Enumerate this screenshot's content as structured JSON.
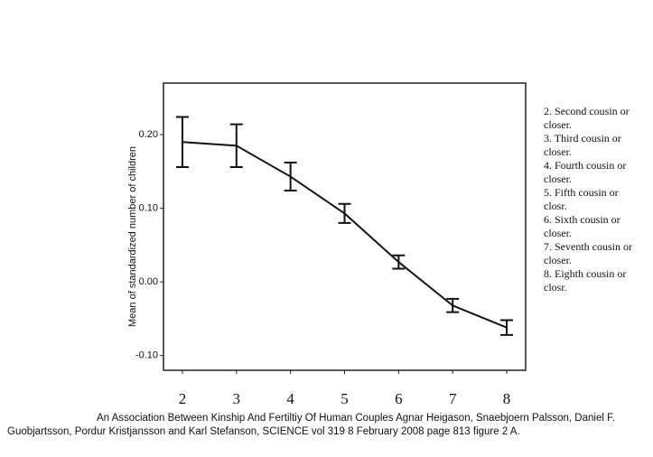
{
  "chart_data": {
    "type": "line",
    "y_label": "Mean of standardized number of children",
    "x": [
      2,
      3,
      4,
      5,
      6,
      7,
      8
    ],
    "values": [
      0.19,
      0.185,
      0.143,
      0.093,
      0.027,
      -0.032,
      -0.062
    ],
    "errors": [
      0.034,
      0.029,
      0.019,
      0.013,
      0.009,
      0.009,
      0.01
    ],
    "color": "#111111",
    "xlim": [
      1.65,
      8.35
    ],
    "xticks": [
      2,
      3,
      4,
      5,
      6,
      7,
      8
    ],
    "ylim": [
      -0.12,
      0.27
    ],
    "yticks": [
      {
        "value": 0.2,
        "label": "0.20"
      },
      {
        "value": 0.1,
        "label": "0.10"
      },
      {
        "value": 0,
        "label": "0.00"
      },
      {
        "value": -0.1,
        "label": "-0.10"
      }
    ],
    "notes": [
      "2. Second cousin or closer.",
      "3. Third cousin or closer.",
      "4. Fourth cousin or closer.",
      "5. Fifth cousin or closr.",
      "6. Sixth cousin or closer.",
      "7. Seventh cousin or closer.",
      "8. Eighth cousin or closr."
    ],
    "caption": "An Association Between Kinship And Fertiltiy Of Human Couples Agnar Heigason, Snaebjoern Palsson, Daniel F. Guobjartsson, Pordur Kristjansson and Karl Stefanson, SCIENCE vol 319 8 February 2008 page 813 figure 2 A."
  }
}
